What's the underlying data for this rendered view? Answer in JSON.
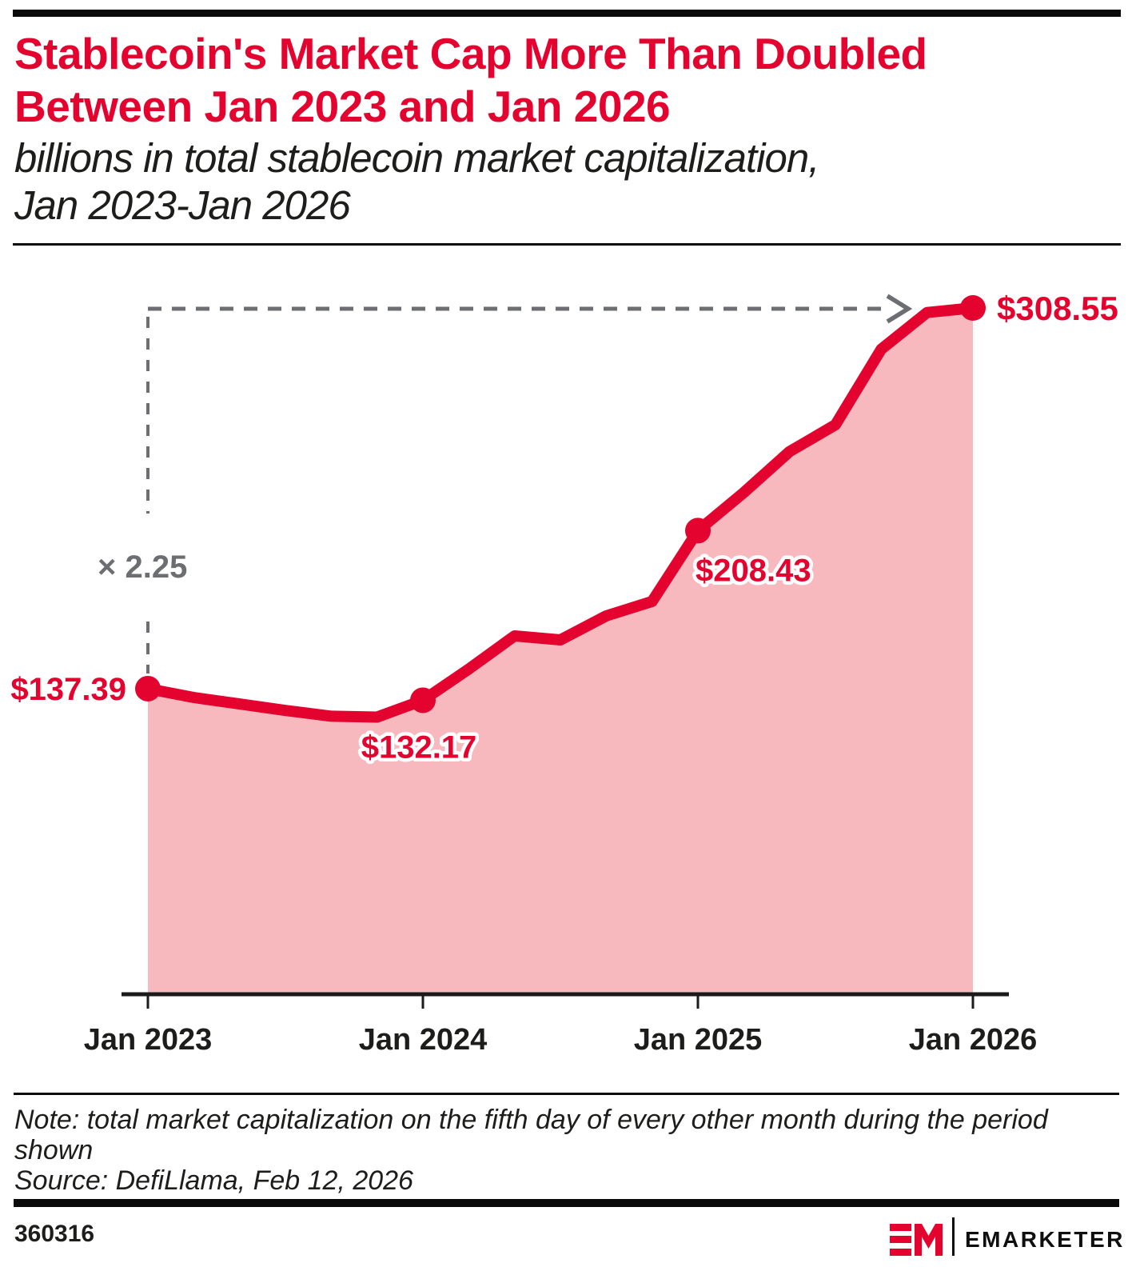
{
  "header": {
    "title_line1": "Stablecoin's Market Cap More Than Doubled",
    "title_line2": "Between Jan 2023 and Jan 2026",
    "subtitle_line1": "billions in total stablecoin market capitalization,",
    "subtitle_line2": "Jan 2023-Jan 2026"
  },
  "chart_data": {
    "type": "area",
    "title": "billions in total stablecoin market capitalization, Jan 2023-Jan 2026",
    "x": [
      "Jan 2023",
      "Mar 2023",
      "May 2023",
      "Jul 2023",
      "Sep 2023",
      "Nov 2023",
      "Jan 2024",
      "Mar 2024",
      "May 2024",
      "Jul 2024",
      "Sep 2024",
      "Nov 2024",
      "Jan 2025",
      "Mar 2025",
      "May 2025",
      "Jul 2025",
      "Sep 2025",
      "Nov 2025",
      "Jan 2026"
    ],
    "values": [
      137.39,
      133.4,
      130.5,
      127.6,
      125.0,
      124.6,
      132.17,
      146.2,
      161.1,
      159.3,
      170.1,
      176.6,
      208.43,
      225.5,
      244.0,
      256.0,
      290.0,
      306.5,
      308.55
    ],
    "labeled_points": [
      {
        "index": 0,
        "x": "Jan 2023",
        "value": 137.39,
        "label": "$137.39"
      },
      {
        "index": 6,
        "x": "Jan 2024",
        "value": 132.17,
        "label": "$132.17"
      },
      {
        "index": 12,
        "x": "Jan 2025",
        "value": 208.43,
        "label": "$208.43"
      },
      {
        "index": 18,
        "x": "Jan 2026",
        "value": 308.55,
        "label": "$308.55"
      }
    ],
    "x_tick_labels": [
      "Jan 2023",
      "Jan 2024",
      "Jan 2025",
      "Jan 2026"
    ],
    "annotation": {
      "label": "× 2.25",
      "from": "Jan 2023",
      "to": "Jan 2026"
    },
    "ylim": [
      0,
      330
    ],
    "grid": false,
    "legend": false,
    "colors": {
      "line": "#e4032e",
      "fill": "#f7b9bd",
      "point_label": "#e4032e",
      "annotation": "#6d6e71",
      "axis": "#1a1a1a",
      "tick_label": "#1d1d1b"
    }
  },
  "footer": {
    "note_line1": "Note: total market capitalization on the fifth day of every other month during the period",
    "note_line2": "shown",
    "source": "Source: DefiLlama, Feb 12, 2026",
    "chart_id": "360316",
    "brand": "EMARKETER"
  }
}
